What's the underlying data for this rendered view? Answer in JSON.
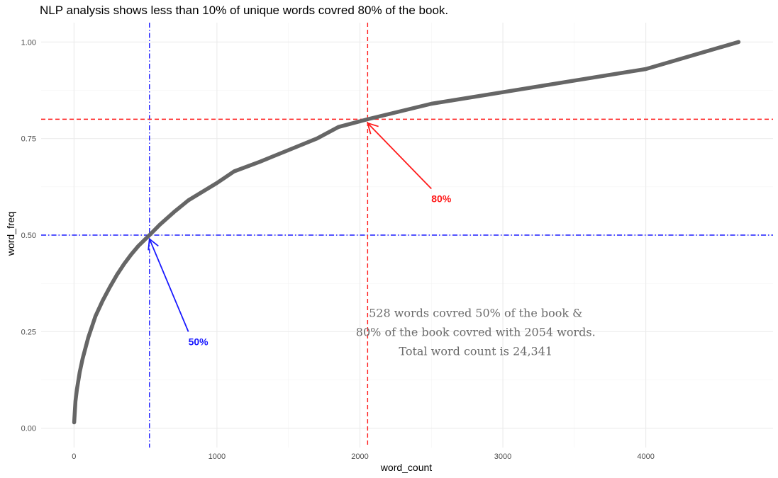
{
  "chart_data": {
    "type": "line",
    "title": "NLP analysis shows less than 10% of unique words covred 80% of the book.",
    "xlabel": "word_count",
    "ylabel": "word_freq",
    "xlim": [
      -230,
      4890
    ],
    "ylim": [
      -0.05,
      1.05
    ],
    "x_ticks": [
      0,
      1000,
      2000,
      3000,
      4000
    ],
    "x_tick_labels": [
      "0",
      "1000",
      "2000",
      "3000",
      "4000"
    ],
    "y_ticks": [
      0.0,
      0.25,
      0.5,
      0.75,
      1.0
    ],
    "y_tick_labels": [
      "0.00",
      "0.25",
      "0.50",
      "0.75",
      "1.00"
    ],
    "grid": true,
    "series": [
      {
        "color": "#666666",
        "x": [
          1,
          5,
          10,
          20,
          40,
          60,
          100,
          150,
          200,
          250,
          300,
          350,
          400,
          450,
          500,
          528,
          600,
          700,
          800,
          1000,
          1120,
          1300,
          1500,
          1700,
          1850,
          2054,
          2500,
          3000,
          3500,
          4000,
          4649
        ],
        "y": [
          0.015,
          0.04,
          0.07,
          0.1,
          0.145,
          0.18,
          0.235,
          0.29,
          0.33,
          0.365,
          0.397,
          0.425,
          0.45,
          0.472,
          0.49,
          0.5,
          0.527,
          0.56,
          0.59,
          0.635,
          0.665,
          0.69,
          0.72,
          0.75,
          0.78,
          0.8,
          0.84,
          0.87,
          0.9,
          0.93,
          1.0
        ]
      }
    ],
    "reference_lines": [
      {
        "axis": "x",
        "value": 528,
        "color": "#1a1aff",
        "style": "dotdash"
      },
      {
        "axis": "y",
        "value": 0.5,
        "color": "#1a1aff",
        "style": "dotdash"
      },
      {
        "axis": "x",
        "value": 2054,
        "color": "#ff1a1a",
        "style": "dashed"
      },
      {
        "axis": "y",
        "value": 0.8,
        "color": "#ff1a1a",
        "style": "dashed"
      }
    ],
    "arrows": [
      {
        "label": "50%",
        "color": "#1a1aff",
        "from": [
          800,
          0.25
        ],
        "to": [
          528,
          0.49
        ]
      },
      {
        "label": "80%",
        "color": "#ff1a1a",
        "from": [
          2500,
          0.62
        ],
        "to": [
          2054,
          0.79
        ]
      }
    ],
    "annotation": {
      "lines": [
        "528 words covred 50% of the book &",
        "80% of the book covred with 2054 words.",
        "Total word count is 24,341"
      ],
      "x": 2810,
      "y": 0.25
    }
  }
}
